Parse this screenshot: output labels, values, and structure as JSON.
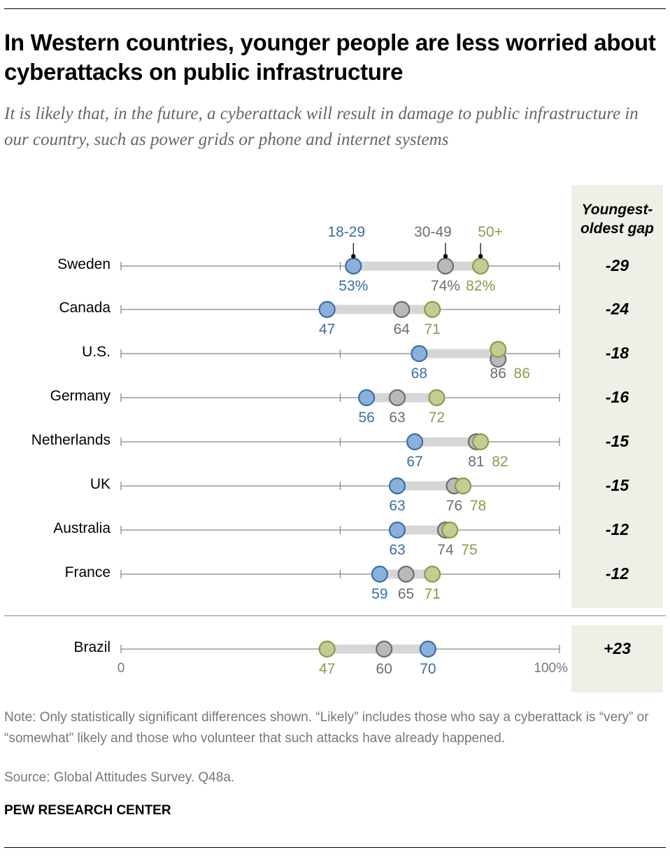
{
  "title": "In Western countries, younger people are less worried about cyberattacks on public infrastructure",
  "subtitle": "It is likely that, in the future, a cyberattack will result in damage to public infrastructure in our country, such as power grids or phone and internet systems",
  "gap_header": "Youngest-oldest gap",
  "colors": {
    "age_18_29": "#3a6ea5",
    "age_18_29_fill": "#8cb0dc",
    "age_30_49": "#6d6e71",
    "age_30_49_fill": "#b8b9bb",
    "age_50_plus": "#8c9a4a",
    "age_50_plus_fill": "#c5cb92",
    "bar": "#d6d6d6",
    "axis": "#888888",
    "gap_panel": "#efeee7"
  },
  "chart_data": {
    "type": "dot-range",
    "title": "In Western countries, younger people are less worried about cyberattacks on public infrastructure",
    "xlabel": "",
    "ylabel": "",
    "xlim": [
      0,
      100
    ],
    "x_tick_labels": [
      "0",
      "100%"
    ],
    "legend": [
      "18-29",
      "30-49",
      "50+"
    ],
    "legend_placement": "top (annotated on first row)",
    "value_suffix_first_row": "%",
    "categories": [
      "Sweden",
      "Canada",
      "U.S.",
      "Germany",
      "Netherlands",
      "UK",
      "Australia",
      "France",
      "Brazil"
    ],
    "series": [
      {
        "name": "18-29",
        "values": [
          53,
          47,
          68,
          56,
          67,
          63,
          63,
          59,
          70
        ]
      },
      {
        "name": "30-49",
        "values": [
          74,
          64,
          86,
          63,
          81,
          76,
          74,
          65,
          60
        ]
      },
      {
        "name": "50+",
        "values": [
          82,
          71,
          86,
          72,
          82,
          78,
          75,
          71,
          47
        ]
      }
    ],
    "gap": [
      "-29",
      "-24",
      "-18",
      "-16",
      "-15",
      "-15",
      "-12",
      "-12",
      "+23"
    ],
    "gap_label": "Youngest-oldest gap"
  },
  "note": "Note: Only statistically significant differences shown. “Likely” includes those who say a cyberattack is “very” or “somewhat” likely and those who volunteer that such attacks have already happened.",
  "source": "Source: Global Attitudes Survey. Q48a.",
  "brand": "PEW RESEARCH CENTER"
}
